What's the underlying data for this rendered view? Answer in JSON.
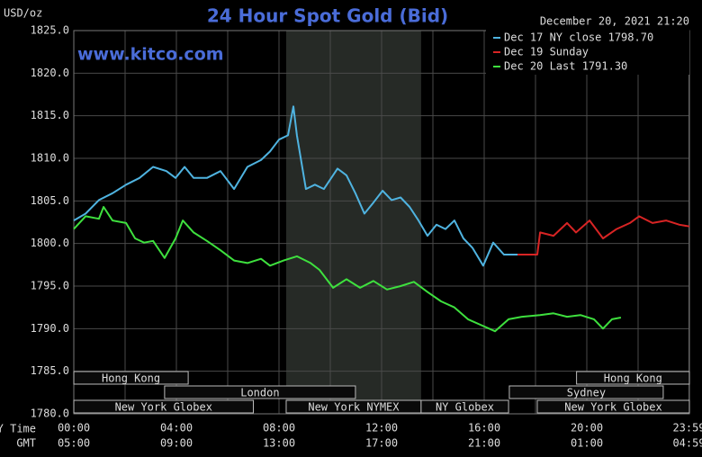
{
  "chart_data": {
    "type": "line",
    "title": "24 Hour Spot Gold (Bid)",
    "y_label": "USD/oz",
    "watermark": "www.kitco.com",
    "timestamp": "December 20, 2021 21:20",
    "x_label": "NY Time",
    "x2_label": "GMT",
    "xlim": [
      0,
      24
    ],
    "xticks": [
      {
        "value": 0,
        "label": "00:00"
      },
      {
        "value": 4,
        "label": "04:00"
      },
      {
        "value": 8,
        "label": "08:00"
      },
      {
        "value": 12,
        "label": "12:00"
      },
      {
        "value": 16,
        "label": "16:00"
      },
      {
        "value": 20,
        "label": "20:00"
      },
      {
        "value": 23.983,
        "label": "23:59"
      }
    ],
    "x_minor_ticks": [
      2,
      6,
      10,
      14,
      18,
      22
    ],
    "gmt_labels": [
      "05:00",
      "09:00",
      "13:00",
      "17:00",
      "21:00",
      "01:00",
      "04:59"
    ],
    "ylim": [
      1780,
      1825
    ],
    "yticks": [
      {
        "value": 1780,
        "label": "1780.0"
      },
      {
        "value": 1785,
        "label": "1785.0"
      },
      {
        "value": 1790,
        "label": "1790.0"
      },
      {
        "value": 1795,
        "label": "1795.0"
      },
      {
        "value": 1800,
        "label": "1800.0"
      },
      {
        "value": 1805,
        "label": "1805.0"
      },
      {
        "value": 1810,
        "label": "1810.0"
      },
      {
        "value": 1815,
        "label": "1815.0"
      },
      {
        "value": 1820,
        "label": "1820.0"
      },
      {
        "value": 1825,
        "label": "1825.0"
      }
    ],
    "grid": true,
    "highlight_x": [
      8.28,
      13.54
    ],
    "sessions": [
      [
        {
          "label": "Hong Kong",
          "start": 0,
          "end": 4.46
        },
        {
          "label": "Hong Kong",
          "start": 19.6,
          "end": 24
        }
      ],
      [
        {
          "label": "London",
          "start": 3.54,
          "end": 10.98
        },
        {
          "label": "Sydney",
          "start": 16.98,
          "end": 22.98
        }
      ],
      [
        {
          "label": "New York Globex",
          "start": 0,
          "end": 7.0
        },
        {
          "label": "New York NYMEX",
          "start": 8.28,
          "end": 13.54
        },
        {
          "label": "NY Globex",
          "start": 13.54,
          "end": 16.95
        },
        {
          "label": "New York Globex",
          "start": 18.07,
          "end": 24
        }
      ]
    ],
    "series": [
      {
        "name": "Dec 17 NY close 1798.70",
        "color": "#4fb3e0",
        "x": [
          0,
          0.46,
          0.98,
          1.51,
          2.04,
          2.56,
          3.09,
          3.61,
          3.97,
          4.32,
          4.67,
          5.19,
          5.72,
          6.25,
          6.77,
          7.3,
          7.65,
          8.0,
          8.35,
          8.56,
          8.7,
          9.05,
          9.4,
          9.75,
          10.28,
          10.63,
          10.98,
          11.33,
          11.68,
          12.04,
          12.39,
          12.74,
          13.09,
          13.44,
          13.79,
          14.14,
          14.49,
          14.84,
          15.19,
          15.54,
          15.96,
          16.35,
          16.77,
          17.3
        ],
        "values": [
          1802.7,
          1803.5,
          1805.1,
          1805.9,
          1806.9,
          1807.7,
          1809.0,
          1808.5,
          1807.7,
          1809.0,
          1807.7,
          1807.7,
          1808.5,
          1806.4,
          1809.0,
          1809.8,
          1810.8,
          1812.2,
          1812.7,
          1816.1,
          1812.7,
          1806.4,
          1806.9,
          1806.4,
          1808.8,
          1808.0,
          1805.9,
          1803.5,
          1804.8,
          1806.2,
          1805.1,
          1805.4,
          1804.3,
          1802.7,
          1800.9,
          1802.2,
          1801.7,
          1802.7,
          1800.6,
          1799.5,
          1797.4,
          1800.1,
          1798.7,
          1798.7
        ]
      },
      {
        "name": "Dec 19 Sunday",
        "color": "#d82424",
        "x": [
          17.3,
          18.07,
          18.18,
          18.7,
          19.23,
          19.58,
          20.11,
          20.63,
          21.16,
          21.68,
          22.04,
          22.56,
          23.09,
          23.61,
          24
        ],
        "values": [
          1798.7,
          1798.7,
          1801.3,
          1800.9,
          1802.4,
          1801.3,
          1802.7,
          1800.6,
          1801.7,
          1802.4,
          1803.2,
          1802.4,
          1802.7,
          1802.2,
          1802.0
        ]
      },
      {
        "name": "Dec 20 Last 1791.30",
        "color": "#3ee03e",
        "x": [
          0,
          0.46,
          0.98,
          1.16,
          1.51,
          2.04,
          2.39,
          2.74,
          3.09,
          3.54,
          3.97,
          4.25,
          4.67,
          5.19,
          5.72,
          6.25,
          6.77,
          7.3,
          7.65,
          8.18,
          8.7,
          9.23,
          9.58,
          10.11,
          10.63,
          11.16,
          11.68,
          12.21,
          12.74,
          13.26,
          13.79,
          14.32,
          14.84,
          15.37,
          15.89,
          16.42,
          16.95,
          17.47,
          18.18,
          18.7,
          19.23,
          19.75,
          20.28,
          20.63,
          20.98,
          21.33
        ],
        "values": [
          1801.7,
          1803.2,
          1802.9,
          1804.3,
          1802.7,
          1802.4,
          1800.6,
          1800.1,
          1800.3,
          1798.3,
          1800.6,
          1802.7,
          1801.3,
          1800.3,
          1799.2,
          1798.0,
          1797.7,
          1798.2,
          1797.4,
          1798.0,
          1798.5,
          1797.7,
          1796.9,
          1794.8,
          1795.8,
          1794.8,
          1795.6,
          1794.6,
          1795.0,
          1795.5,
          1794.3,
          1793.2,
          1792.5,
          1791.1,
          1790.4,
          1789.7,
          1791.1,
          1791.4,
          1791.6,
          1791.8,
          1791.4,
          1791.6,
          1791.1,
          1790.0,
          1791.1,
          1791.3
        ]
      }
    ]
  }
}
